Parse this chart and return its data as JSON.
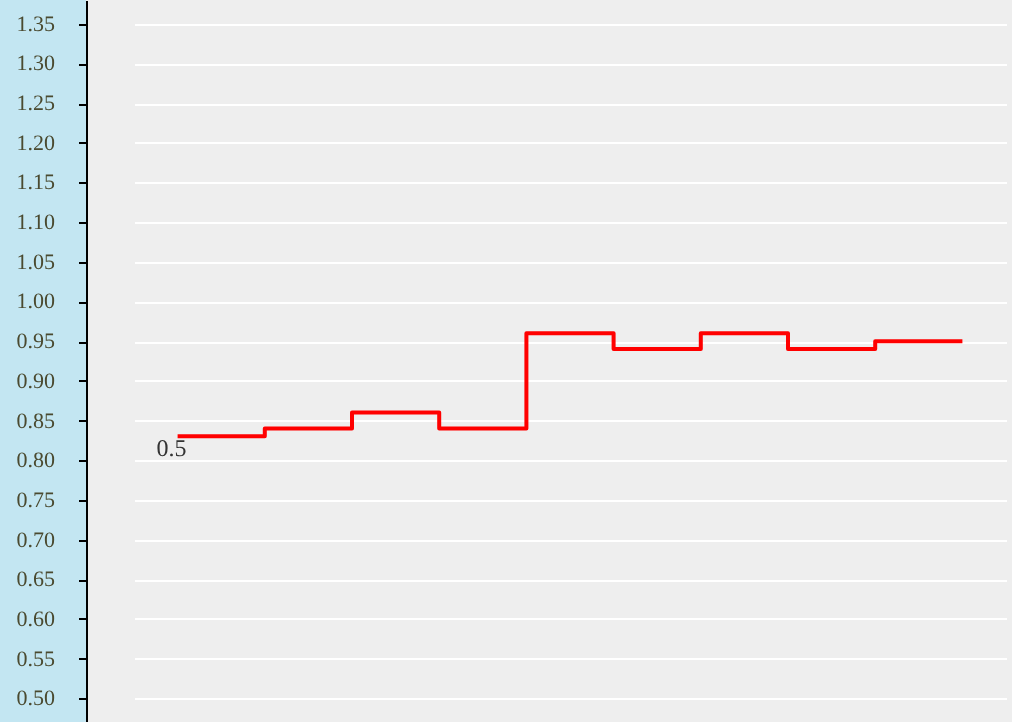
{
  "chart_data": {
    "type": "step",
    "ylim": [
      0.47,
      1.38
    ],
    "yticks": [
      {
        "value": 0.5,
        "label": "0.50"
      },
      0.55,
      {
        "value": 0.6,
        "label": "0.60"
      },
      0.65,
      {
        "value": 0.7,
        "label": "0.70"
      },
      0.75,
      {
        "value": 0.8,
        "label": "0.80"
      },
      0.85,
      {
        "value": 0.9,
        "label": "0.90"
      },
      0.95,
      {
        "value": 1.0,
        "label": "1.00"
      },
      1.05,
      {
        "value": 1.1,
        "label": "1.10"
      },
      1.15,
      {
        "value": 1.2,
        "label": "1.20"
      },
      1.25,
      {
        "value": 1.3,
        "label": "1.30"
      },
      1.35
    ],
    "grid": "y",
    "marker": "none",
    "line_style": "solid",
    "categories": [
      null,
      null,
      null,
      null,
      null,
      null,
      null,
      null,
      null,
      null
    ],
    "series": [
      {
        "color": "#ff0000",
        "values": [
          0.83,
          0.84,
          0.86,
          0.84,
          0.96,
          0.94,
          0.96,
          0.94,
          0.95,
          0.95
        ]
      }
    ],
    "annotations": [
      {
        "text": "0.5",
        "y": 0.83
      }
    ]
  }
}
